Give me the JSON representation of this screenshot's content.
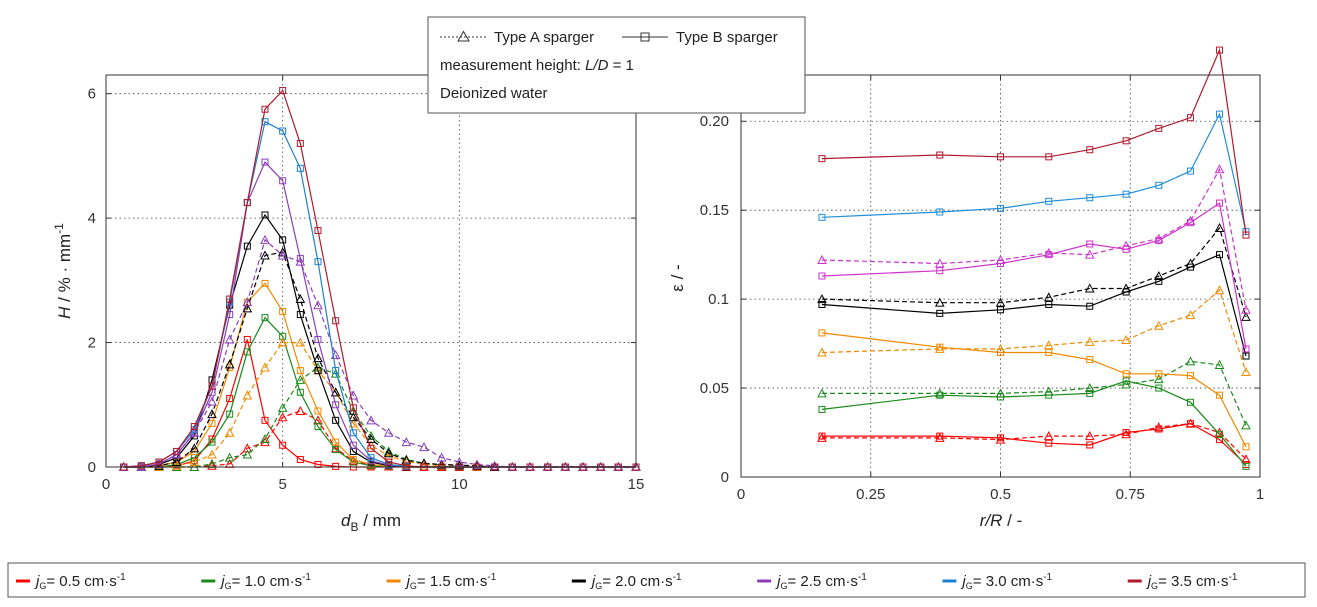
{
  "legend_top": {
    "type_a": "Type A sparger",
    "type_b": "Type B sparger",
    "height_prefix": "measurement height: ",
    "height_var": "L/D",
    "height_value": " = 1",
    "medium": "Deionized water"
  },
  "legend_bottom": {
    "jg_label": "j",
    "jg_sub": "G",
    "unit_prefix": " cm·s",
    "unit_exp": "-1",
    "items": [
      {
        "value": "= 0.5",
        "color": "#ff0000"
      },
      {
        "value": "= 1.0",
        "color": "#1a8a1a"
      },
      {
        "value": "= 1.5",
        "color": "#f08a00"
      },
      {
        "value": "= 2.0",
        "color": "#000000"
      },
      {
        "value": "= 2.5",
        "color": "#8a3fb8"
      },
      {
        "value": "= 3.0",
        "color": "#1f7fd0"
      },
      {
        "value": "= 3.5",
        "color": "#b01a2e"
      }
    ]
  },
  "chart_data": [
    {
      "type": "line",
      "ylabel_var": "H",
      "ylabel_unit": " / % · mm",
      "ylabel_exp": "-1",
      "xlabel_var": "d",
      "xlabel_sub": "B",
      "xlabel_unit": " / mm",
      "xlim": [
        0,
        15
      ],
      "ylim": [
        0,
        6.3
      ],
      "xticks": [
        0,
        5,
        10,
        15
      ],
      "yticks": [
        0,
        2,
        4,
        6
      ],
      "grid": true,
      "x": [
        0.5,
        1,
        1.5,
        2,
        2.5,
        3,
        3.5,
        4,
        4.5,
        5,
        5.5,
        6,
        6.5,
        7,
        7.5,
        8,
        8.5,
        9,
        9.5,
        10,
        10.5,
        11,
        11.5,
        12,
        12.5,
        13,
        13.5,
        14,
        14.5,
        15
      ],
      "series": [
        {
          "sparger": "B",
          "color": "#ff0000",
          "values": [
            0,
            0,
            0,
            0.02,
            0.1,
            0.45,
            1.1,
            2.05,
            0.75,
            0.35,
            0.12,
            0.04,
            0.01,
            0,
            0,
            0,
            0,
            0,
            0,
            0,
            0,
            0,
            0,
            0,
            0,
            0,
            0,
            0,
            0,
            0
          ]
        },
        {
          "sparger": "A",
          "color": "#ff0000",
          "values": [
            0,
            0,
            0,
            0,
            0,
            0.02,
            0.05,
            0.3,
            0.4,
            0.8,
            0.9,
            0.75,
            0.3,
            0.1,
            0.03,
            0.01,
            0,
            0,
            0,
            0,
            0,
            0,
            0,
            0,
            0,
            0,
            0,
            0,
            0,
            0
          ]
        },
        {
          "sparger": "B",
          "color": "#1a8a1a",
          "values": [
            0,
            0,
            0,
            0.04,
            0.15,
            0.4,
            0.85,
            1.85,
            2.4,
            2.1,
            1.2,
            0.65,
            0.28,
            0.08,
            0.02,
            0.01,
            0,
            0,
            0,
            0,
            0,
            0,
            0,
            0,
            0,
            0,
            0,
            0,
            0,
            0
          ]
        },
        {
          "sparger": "A",
          "color": "#1a8a1a",
          "values": [
            0,
            0,
            0,
            0,
            0,
            0.05,
            0.15,
            0.2,
            0.45,
            0.95,
            1.4,
            1.6,
            1.5,
            0.9,
            0.5,
            0.25,
            0.12,
            0.06,
            0.03,
            0.02,
            0,
            0,
            0,
            0,
            0,
            0,
            0,
            0,
            0,
            0
          ]
        },
        {
          "sparger": "B",
          "color": "#f08a00",
          "values": [
            0,
            0,
            0.02,
            0.08,
            0.25,
            0.7,
            1.6,
            2.65,
            2.95,
            2.5,
            1.55,
            0.9,
            0.4,
            0.12,
            0.04,
            0.01,
            0,
            0,
            0,
            0,
            0,
            0,
            0,
            0,
            0,
            0,
            0,
            0,
            0,
            0
          ]
        },
        {
          "sparger": "A",
          "color": "#f08a00",
          "values": [
            0,
            0,
            0,
            0.02,
            0.08,
            0.2,
            0.55,
            1.15,
            1.6,
            2.0,
            2.0,
            1.55,
            1.2,
            0.7,
            0.35,
            0.18,
            0.09,
            0.04,
            0.02,
            0.01,
            0,
            0,
            0,
            0,
            0,
            0,
            0,
            0,
            0,
            0
          ]
        },
        {
          "sparger": "B",
          "color": "#000000",
          "values": [
            0,
            0,
            0.04,
            0.15,
            0.5,
            1.4,
            2.6,
            3.55,
            4.05,
            3.65,
            2.45,
            1.55,
            0.75,
            0.25,
            0.08,
            0.02,
            0,
            0,
            0,
            0,
            0,
            0,
            0,
            0,
            0,
            0,
            0,
            0,
            0,
            0
          ]
        },
        {
          "sparger": "A",
          "color": "#000000",
          "values": [
            0,
            0,
            0.02,
            0.08,
            0.3,
            0.85,
            1.65,
            2.55,
            3.4,
            3.45,
            2.7,
            1.75,
            1.2,
            0.8,
            0.45,
            0.22,
            0.11,
            0.06,
            0.04,
            0.03,
            0.02,
            0,
            0,
            0,
            0,
            0,
            0,
            0,
            0,
            0
          ]
        },
        {
          "sparger": "B",
          "color": "#8a3fb8",
          "values": [
            0,
            0,
            0.05,
            0.2,
            0.55,
            1.2,
            2.45,
            4.25,
            4.9,
            4.6,
            3.35,
            2.05,
            1.0,
            0.35,
            0.1,
            0.03,
            0.01,
            0,
            0,
            0,
            0,
            0,
            0,
            0,
            0,
            0,
            0,
            0,
            0,
            0
          ]
        },
        {
          "sparger": "A",
          "color": "#8a3fb8",
          "values": [
            0,
            0,
            0.05,
            0.2,
            0.55,
            1.05,
            2.05,
            2.65,
            3.65,
            3.4,
            3.3,
            2.6,
            1.8,
            1.15,
            0.75,
            0.55,
            0.4,
            0.32,
            0.15,
            0.08,
            0.04,
            0.02,
            0,
            0,
            0,
            0,
            0,
            0,
            0,
            0
          ]
        },
        {
          "sparger": "B",
          "color": "#1f7fd0",
          "values": [
            0,
            0.02,
            0.08,
            0.25,
            0.6,
            1.3,
            2.65,
            4.25,
            5.55,
            5.4,
            4.8,
            3.3,
            1.55,
            0.55,
            0.15,
            0.04,
            0.01,
            0,
            0,
            0,
            0,
            0,
            0,
            0,
            0,
            0,
            0,
            0,
            0,
            0
          ]
        },
        {
          "sparger": "B",
          "color": "#b01a2e",
          "values": [
            0,
            0.02,
            0.08,
            0.25,
            0.65,
            1.3,
            2.7,
            4.25,
            5.75,
            6.05,
            5.2,
            3.8,
            2.35,
            0.95,
            0.3,
            0.08,
            0.02,
            0,
            0,
            0,
            0,
            0,
            0,
            0,
            0,
            0,
            0,
            0,
            0,
            0
          ]
        }
      ]
    },
    {
      "type": "line",
      "ylabel": "ε / -",
      "xlabel_var": "r/R",
      "xlabel_unit": " / -",
      "xlim": [
        0,
        1
      ],
      "ylim": [
        0,
        0.226
      ],
      "xticks": [
        "0",
        "0.25",
        "0.5",
        "0.75",
        "1"
      ],
      "yticks": [
        "0",
        "0.05",
        "0.1",
        "0.15",
        "0.20"
      ],
      "grid": true,
      "x": [
        0.156,
        0.383,
        0.5,
        0.593,
        0.672,
        0.742,
        0.805,
        0.866,
        0.922,
        0.973
      ],
      "series": [
        {
          "sparger": "B",
          "color": "#ff0000",
          "values": [
            0.023,
            0.023,
            0.022,
            0.019,
            0.018,
            0.025,
            0.027,
            0.03,
            0.021,
            0.007
          ]
        },
        {
          "sparger": "A",
          "color": "#ff0000",
          "values": [
            0.022,
            0.022,
            0.021,
            0.023,
            0.023,
            0.024,
            0.028,
            0.03,
            0.025,
            0.01
          ]
        },
        {
          "sparger": "B",
          "color": "#1a8a1a",
          "values": [
            0.038,
            0.046,
            0.045,
            0.046,
            0.047,
            0.054,
            0.05,
            0.042,
            0.024,
            0.006
          ]
        },
        {
          "sparger": "A",
          "color": "#1a8a1a",
          "values": [
            0.047,
            0.047,
            0.047,
            0.048,
            0.05,
            0.052,
            0.055,
            0.065,
            0.063,
            0.029
          ]
        },
        {
          "sparger": "B",
          "color": "#f08a00",
          "values": [
            0.081,
            0.073,
            0.07,
            0.07,
            0.066,
            0.058,
            0.058,
            0.057,
            0.046,
            0.017
          ]
        },
        {
          "sparger": "A",
          "color": "#f08a00",
          "values": [
            0.07,
            0.072,
            0.072,
            0.074,
            0.076,
            0.077,
            0.085,
            0.091,
            0.105,
            0.059
          ]
        },
        {
          "sparger": "B",
          "color": "#000000",
          "values": [
            0.097,
            0.092,
            0.094,
            0.097,
            0.096,
            0.104,
            0.11,
            0.118,
            0.125,
            0.068
          ]
        },
        {
          "sparger": "A",
          "color": "#000000",
          "values": [
            0.1,
            0.098,
            0.098,
            0.101,
            0.106,
            0.106,
            0.113,
            0.12,
            0.14,
            0.09
          ]
        },
        {
          "sparger": "B",
          "color": "#cc33cc",
          "values": [
            0.113,
            0.116,
            0.12,
            0.125,
            0.131,
            0.128,
            0.133,
            0.143,
            0.154,
            0.072
          ]
        },
        {
          "sparger": "A",
          "color": "#cc33cc",
          "values": [
            0.122,
            0.12,
            0.122,
            0.126,
            0.125,
            0.13,
            0.134,
            0.144,
            0.173,
            0.094
          ]
        },
        {
          "sparger": "B",
          "color": "#1f8fd8",
          "values": [
            0.146,
            0.149,
            0.151,
            0.155,
            0.157,
            0.159,
            0.164,
            0.172,
            0.204,
            0.138
          ]
        },
        {
          "sparger": "B",
          "color": "#b01a2e",
          "values": [
            0.179,
            0.181,
            0.18,
            0.18,
            0.184,
            0.189,
            0.196,
            0.202,
            0.24,
            0.136
          ]
        }
      ]
    }
  ]
}
